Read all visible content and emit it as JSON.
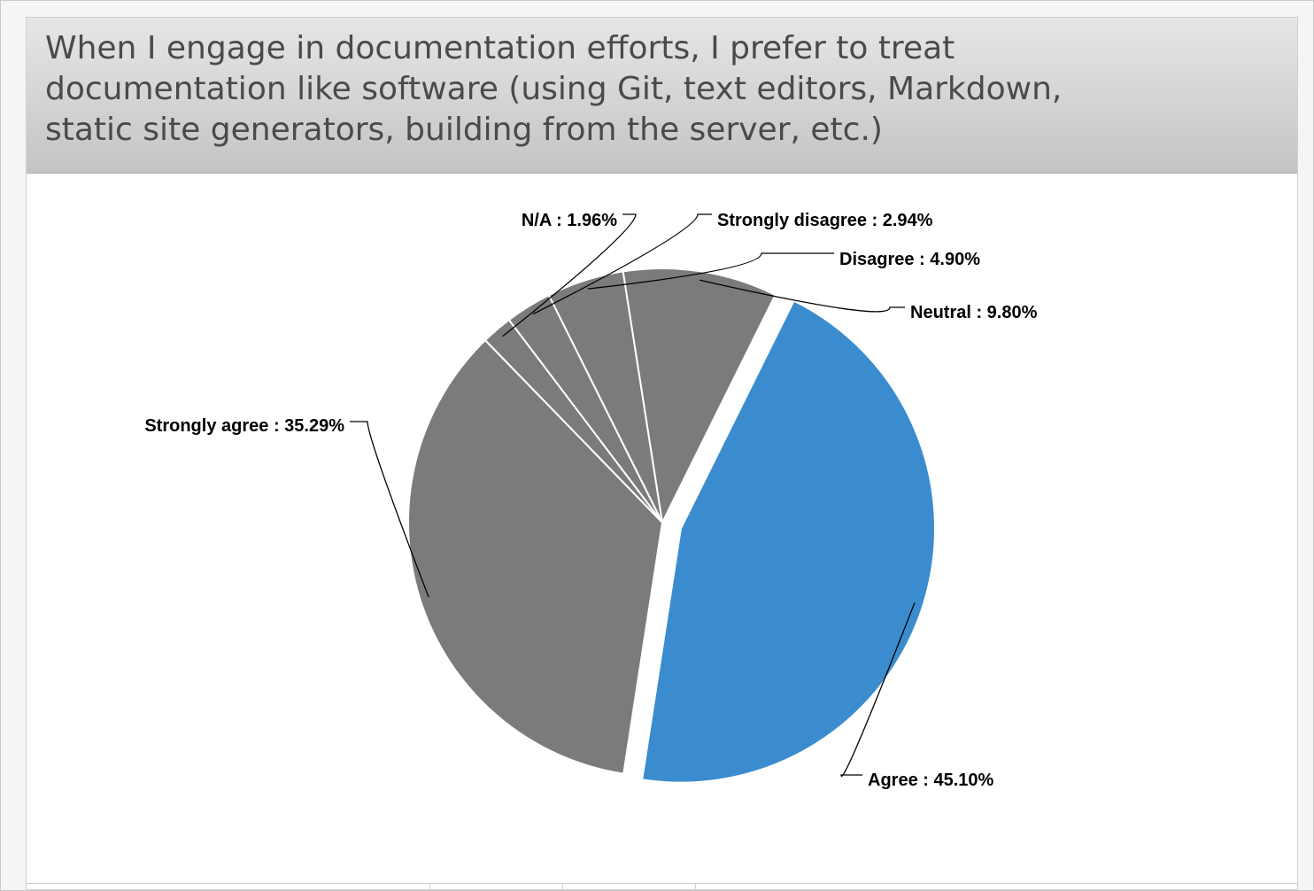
{
  "chart_data": {
    "type": "pie",
    "title": "When I engage in documentation efforts, I prefer to treat documentation like software (using Git, text editors, Markdown, static site generators, building from the server, etc.)",
    "slices": [
      {
        "label": "Agree",
        "value": 45.1,
        "display": "Agree : 45.10%",
        "color": "#3a8ccf",
        "exploded": true
      },
      {
        "label": "Strongly agree",
        "value": 35.29,
        "display": "Strongly agree : 35.29%",
        "color": "#7b7b7b",
        "exploded": false
      },
      {
        "label": "N/A",
        "value": 1.96,
        "display": "N/A : 1.96%",
        "color": "#7b7b7b",
        "exploded": false
      },
      {
        "label": "Strongly disagree",
        "value": 2.94,
        "display": "Strongly disagree : 2.94%",
        "color": "#7b7b7b",
        "exploded": false
      },
      {
        "label": "Disagree",
        "value": 4.9,
        "display": "Disagree : 4.90%",
        "color": "#7b7b7b",
        "exploded": false
      },
      {
        "label": "Neutral",
        "value": 9.8,
        "display": "Neutral : 9.80%",
        "color": "#7b7b7b",
        "exploded": false
      }
    ],
    "legend": "none",
    "data_labels": "outside with leader lines"
  }
}
